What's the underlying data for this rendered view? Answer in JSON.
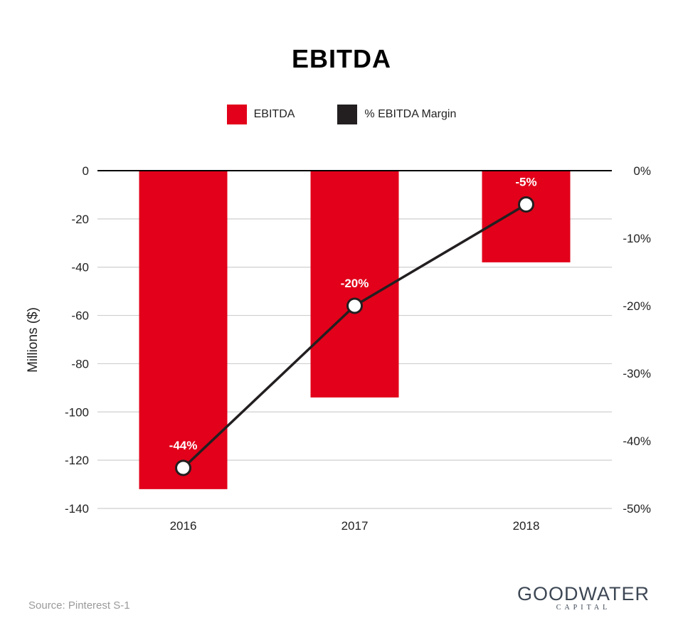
{
  "chart_data": {
    "type": "bar",
    "title": "EBITDA",
    "categories": [
      "2016",
      "2017",
      "2018"
    ],
    "series": [
      {
        "name": "EBITDA",
        "type": "bar",
        "axis": "left",
        "color": "#e2001a",
        "values": [
          -132,
          -94,
          -38
        ]
      },
      {
        "name": "% EBITDA Margin",
        "type": "line",
        "axis": "right",
        "color": "#231f20",
        "values": [
          -44,
          -20,
          -5
        ],
        "data_labels": [
          "-44%",
          "-20%",
          "-5%"
        ]
      }
    ],
    "ylabel": "Millions ($)",
    "ylim": [
      -140,
      0
    ],
    "yticks": [
      "0",
      "-20",
      "-40",
      "-60",
      "-80",
      "-100",
      "-120",
      "-140"
    ],
    "y2lim": [
      -50,
      0
    ],
    "y2ticks": [
      "0%",
      "-10%",
      "-20%",
      "-30%",
      "-40%",
      "-50%"
    ],
    "grid": true,
    "legend": "top-center"
  },
  "footer": {
    "source": "Source: Pinterest S-1",
    "logo_main": "GOODWATER",
    "logo_sub": "CAPITAL"
  }
}
